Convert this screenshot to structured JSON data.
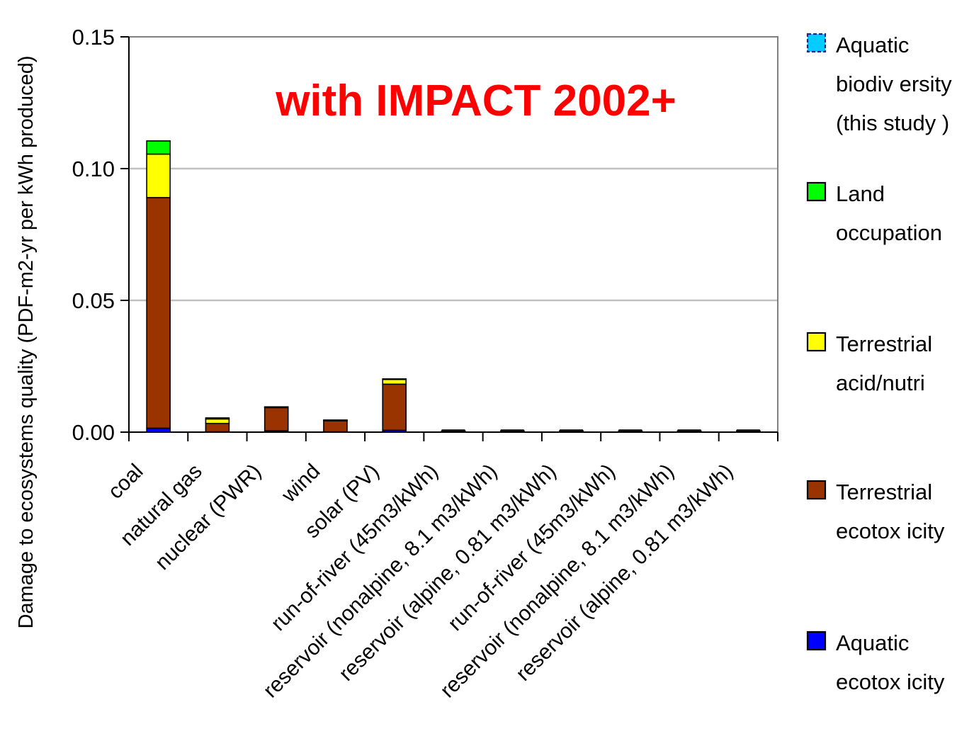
{
  "chart_data": {
    "type": "bar",
    "stacked": true,
    "annotation": "with IMPACT 2002+",
    "ylabel": "Damage to ecosystems quality (PDF-m2-yr per kWh produced)",
    "xlabel": "",
    "ylim": [
      0,
      0.15
    ],
    "yticks": [
      "0.00",
      "0.05",
      "0.10",
      "0.15"
    ],
    "grid": true,
    "legend_position": "right",
    "categories": [
      "coal",
      "natural gas",
      "nuclear (PWR)",
      "wind",
      "solar (PV)",
      "run-of-river (45m3/kWh)",
      "reservoir (nonalpine, 8.1 m3/kWh)",
      "reservoir (alpine, 0.81 m3/kWh)",
      "run-of-river (45m3/kWh)",
      "reservoir (nonalpine, 8.1 m3/kWh)",
      "reservoir (alpine, 0.81 m3/kWh)"
    ],
    "series": [
      {
        "name": "Aquatic ecotox icity",
        "color": "#0000ff",
        "values": [
          0.0015,
          0.0001,
          0.0005,
          0.0001,
          0.0007,
          0.0002,
          0.0002,
          0.0002,
          0.0002,
          0.0002,
          0.0002
        ]
      },
      {
        "name": "Terrestrial ecotox icity",
        "color": "#993300",
        "values": [
          0.0875,
          0.0032,
          0.0088,
          0.0042,
          0.0175,
          0.0001,
          0.0001,
          0.0001,
          0.0001,
          0.0001,
          0.0001
        ]
      },
      {
        "name": "Terrestrial acid/nutri",
        "color": "#ffff00",
        "values": [
          0.0165,
          0.0017,
          0.0002,
          0.0002,
          0.0018,
          0.0001,
          0.0001,
          0.0001,
          0.0001,
          0.0001,
          0.0001
        ]
      },
      {
        "name": "Land occupation",
        "color": "#00ff00",
        "values": [
          0.005,
          0.0004,
          0.0001,
          0.0001,
          0.0002,
          0.0001,
          0.0001,
          0.0001,
          0.0001,
          0.0001,
          0.0001
        ]
      },
      {
        "name": "Aquatic biodiv ersity (this study )",
        "color": "#00ccff",
        "values": [
          0,
          0,
          0,
          0,
          0,
          0,
          0,
          0,
          0,
          0,
          0
        ]
      }
    ],
    "legend": [
      {
        "lines": [
          "Aquatic",
          "biodiv ersity",
          "(this study )"
        ],
        "color": "#00ccff",
        "dashed": true
      },
      {
        "lines": [
          "Land",
          "occupation"
        ],
        "color": "#00ff00",
        "dashed": false
      },
      {
        "lines": [
          "Terrestrial",
          "acid/nutri"
        ],
        "color": "#ffff00",
        "dashed": false
      },
      {
        "lines": [
          "Terrestrial",
          "ecotox icity"
        ],
        "color": "#993300",
        "dashed": false
      },
      {
        "lines": [
          "Aquatic",
          "ecotox icity"
        ],
        "color": "#0000ff",
        "dashed": false
      }
    ]
  }
}
